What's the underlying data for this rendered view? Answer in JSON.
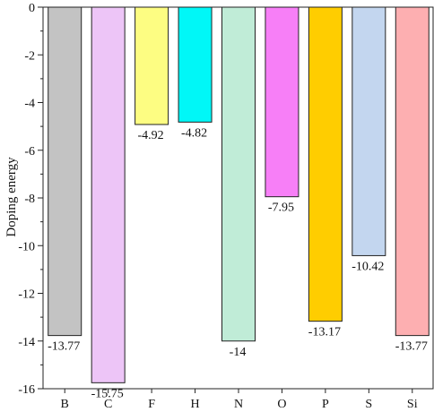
{
  "chart_data": {
    "type": "bar",
    "title": "",
    "xlabel": "",
    "ylabel": "Doping energy",
    "ylim": [
      -16,
      0
    ],
    "yticks": [
      0,
      -2,
      -4,
      -6,
      -8,
      -10,
      -12,
      -14,
      -16
    ],
    "grid": false,
    "categories": [
      "B",
      "C",
      "F",
      "H",
      "N",
      "O",
      "P",
      "S",
      "Si"
    ],
    "values": [
      -13.77,
      -15.75,
      -4.92,
      -4.82,
      -14,
      -7.95,
      -13.17,
      -10.42,
      -13.77
    ],
    "data_labels": [
      "-13.77",
      "-15.75",
      "-4.92",
      "-4.82",
      "-14",
      "-7.95",
      "-13.17",
      "-10.42",
      "-13.77"
    ],
    "colors": [
      "#c3c3c3",
      "#edc5f7",
      "#fdfd82",
      "#00f7f7",
      "#c0ecd7",
      "#f77ff7",
      "#ffcd00",
      "#c3d6ef",
      "#fdafb1"
    ]
  }
}
